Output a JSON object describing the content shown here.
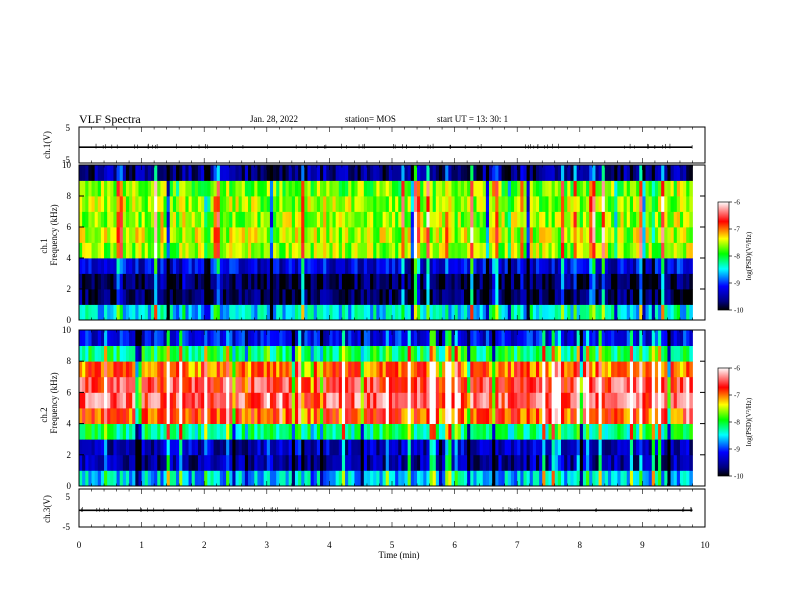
{
  "header": {
    "title": "VLF Spectra",
    "date": "Jan. 28, 2022",
    "station": "station= MOS",
    "start_ut": "start  UT =   13: 30: 1"
  },
  "colors": {
    "black": "#000000",
    "navy": "#00007f",
    "blue": "#0000ff",
    "cyan": "#00ffff",
    "green": "#00ff00",
    "yellow": "#ffff00",
    "red": "#ff0000",
    "white": "#ffffff"
  },
  "chart_data": [
    {
      "type": "line",
      "panel": "ch1-voltage",
      "ylabel": "ch.1(V)",
      "ylim": [
        -5,
        5
      ],
      "y_ticks": [
        "5",
        "-5"
      ],
      "x": [
        0,
        9.8
      ],
      "values": [
        -0.6,
        -0.6
      ]
    },
    {
      "type": "heatmap",
      "panel": "ch1-spectrogram",
      "ylabel": "ch.1\nFrequency (kHz)",
      "ylim": [
        0,
        10
      ],
      "y_ticks": [
        "0",
        "2",
        "4",
        "6",
        "8",
        "10"
      ],
      "xlim": [
        0,
        9.8
      ],
      "freq_bands_khz": [
        0.5,
        1.5,
        2.5,
        3.5,
        4.5,
        5.5,
        6.5,
        7.5,
        8.5,
        9.5
      ],
      "typical_log_psd": [
        -8.5,
        -9.8,
        -9.8,
        -9.3,
        -7.6,
        -7.5,
        -7.6,
        -7.6,
        -7.7,
        -9.6
      ],
      "colorbar": {
        "label": "log(PSD)(V²/Hz)",
        "range": [
          -10,
          -6
        ],
        "ticks": [
          "-6",
          "-7",
          "-8",
          "-9",
          "-10"
        ]
      }
    },
    {
      "type": "heatmap",
      "panel": "ch2-spectrogram",
      "ylabel": "ch.2\nFrequency (kHz)",
      "ylim": [
        0,
        10
      ],
      "y_ticks": [
        "0",
        "2",
        "4",
        "6",
        "8",
        "10"
      ],
      "xlim": [
        0,
        9.8
      ],
      "freq_bands_khz": [
        0.5,
        1.5,
        2.5,
        3.5,
        4.5,
        5.5,
        6.5,
        7.5,
        8.5,
        9.5
      ],
      "typical_log_psd": [
        -8.6,
        -9.5,
        -9.4,
        -8.2,
        -6.9,
        -6.5,
        -6.6,
        -7.0,
        -8.1,
        -9.2
      ],
      "colorbar": {
        "label": "log(PSD)(V²/Hz)",
        "range": [
          -10,
          -6
        ],
        "ticks": [
          "-6",
          "-7",
          "-8",
          "-9",
          "-10"
        ]
      }
    },
    {
      "type": "line",
      "panel": "ch3-voltage",
      "ylabel": "ch.3(V)",
      "ylim": [
        -5,
        5
      ],
      "y_ticks": [
        "5",
        "-5"
      ],
      "x": [
        0,
        9.8
      ],
      "values": [
        -0.6,
        -0.6
      ]
    }
  ],
  "x_axis": {
    "label": "Time (min)",
    "range": [
      0,
      10
    ],
    "ticks": [
      "0",
      "1",
      "2",
      "3",
      "4",
      "5",
      "6",
      "7",
      "8",
      "9",
      "10"
    ]
  }
}
